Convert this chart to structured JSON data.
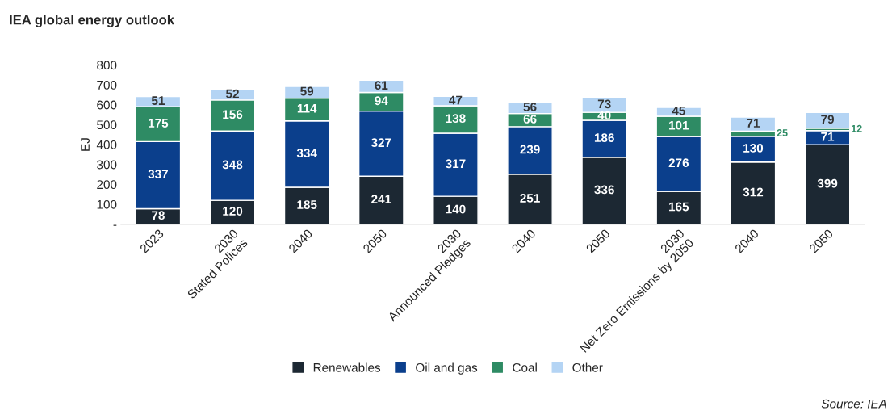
{
  "chart_data": {
    "type": "bar",
    "title": "IEA global energy outlook",
    "ylabel": "EJ",
    "stacked": true,
    "data_labels": true,
    "grid": false,
    "legend": "bottom",
    "categories": [
      "2023",
      "2030\nStated Polices",
      "2040",
      "2050",
      "2030\nAnnounced Pledges",
      "2040",
      "2050",
      "2030\nNet Zero Emissions by 2050",
      "2040",
      "2050"
    ],
    "series": [
      {
        "name": "Renewables",
        "color": "#1c2833",
        "values": [
          78,
          120,
          185,
          241,
          140,
          251,
          336,
          165,
          312,
          399
        ]
      },
      {
        "name": "Oil and gas",
        "color": "#0b3f8c",
        "values": [
          337,
          348,
          334,
          327,
          317,
          239,
          186,
          276,
          130,
          71
        ]
      },
      {
        "name": "Coal",
        "color": "#2e8b64",
        "values": [
          175,
          156,
          114,
          94,
          138,
          66,
          40,
          101,
          25,
          12
        ]
      },
      {
        "name": "Other",
        "color": "#b4d4f4",
        "values": [
          51,
          52,
          59,
          61,
          47,
          56,
          73,
          45,
          71,
          79
        ]
      }
    ],
    "ylim": [
      0,
      800
    ],
    "yticks": [
      {
        "value": 0,
        "label": "-"
      },
      100,
      200,
      300,
      400,
      500,
      600,
      700,
      800
    ],
    "annotations": [
      "Source: IEA"
    ]
  }
}
